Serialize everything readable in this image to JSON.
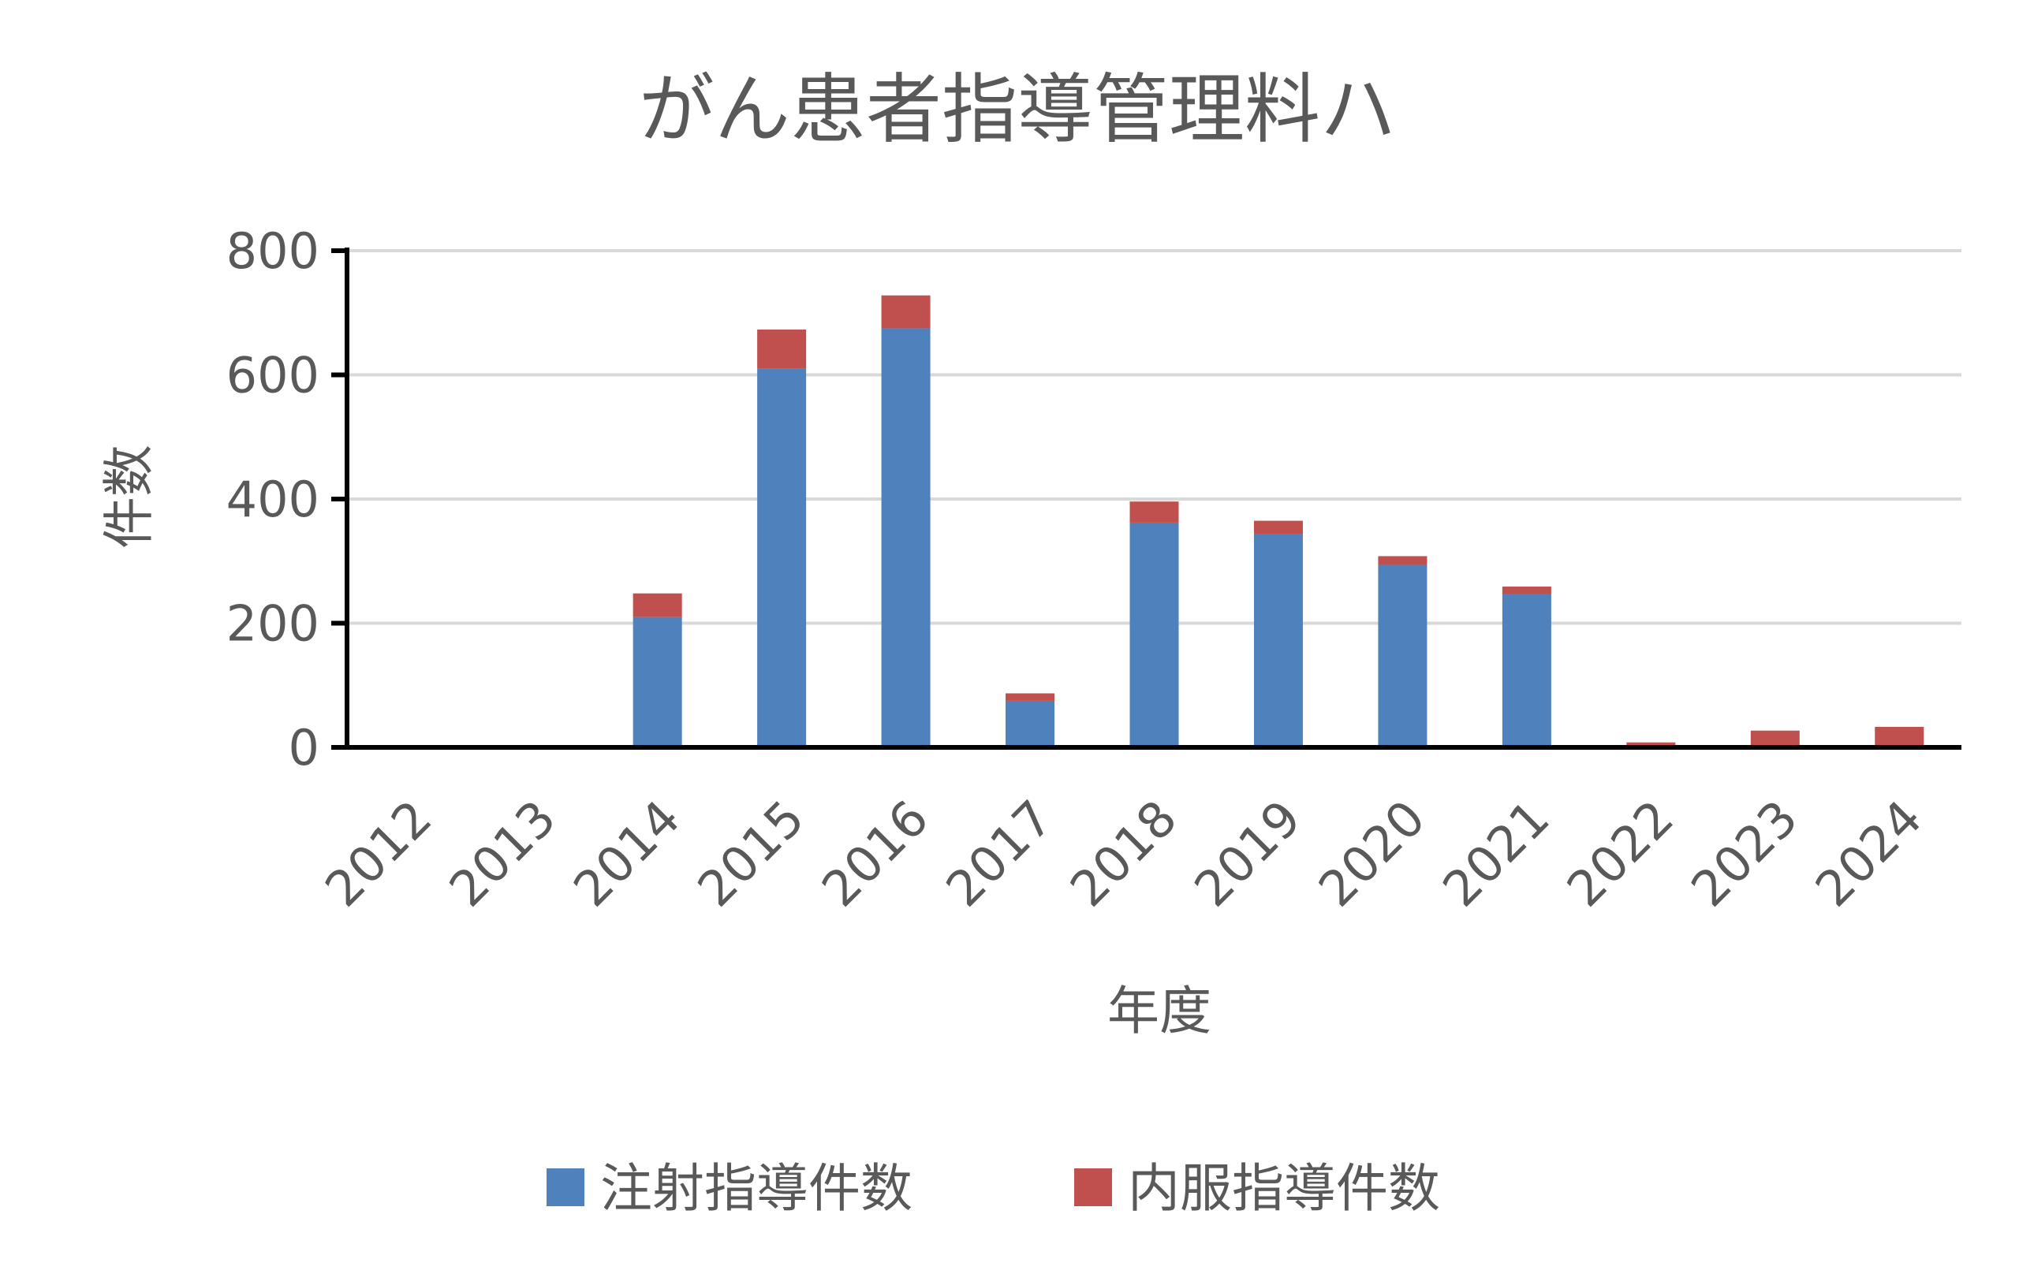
{
  "chart_data": {
    "type": "bar",
    "stacked": true,
    "title": "がん患者指導管理料ハ",
    "xlabel": "年度",
    "ylabel": "件数",
    "categories": [
      "2012",
      "2013",
      "2014",
      "2015",
      "2016",
      "2017",
      "2018",
      "2019",
      "2020",
      "2021",
      "2022",
      "2023",
      "2024"
    ],
    "series": [
      {
        "name": "注射指導件数",
        "color": "#4f81bd",
        "values": [
          0,
          0,
          210,
          610,
          675,
          75,
          362,
          343,
          294,
          247,
          0,
          0,
          0
        ]
      },
      {
        "name": "内服指導件数",
        "color": "#c0504d",
        "values": [
          0,
          0,
          38,
          63,
          53,
          12,
          34,
          22,
          14,
          12,
          8,
          27,
          33
        ]
      }
    ],
    "ylim": [
      0,
      800
    ],
    "yticks": [
      "0",
      "200",
      "400",
      "600",
      "800"
    ],
    "grid": true,
    "gridColor": "#d9d9d9",
    "axisColor": "#000000",
    "legend": "bottom"
  }
}
